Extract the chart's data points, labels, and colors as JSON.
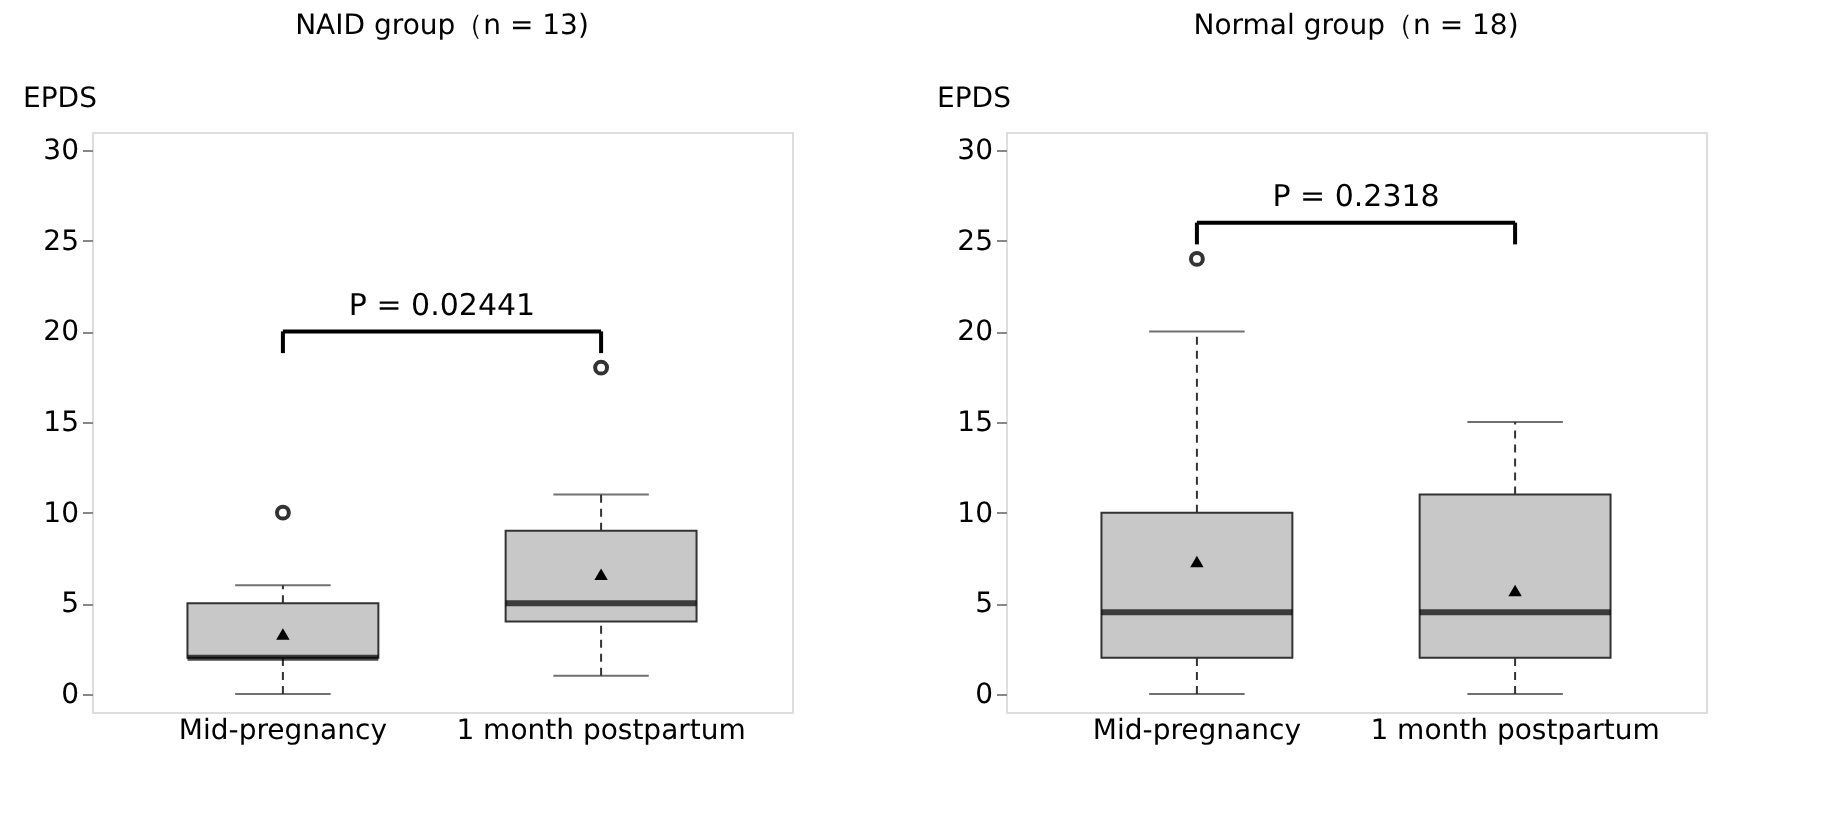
{
  "chart_data": [
    {
      "type": "box",
      "title": "NAID group（n = 13)",
      "ylabel": "EPDS",
      "categories": [
        "Mid-pregnancy",
        "1 month postpartum"
      ],
      "ylim": [
        -1,
        31
      ],
      "yticks": [
        0,
        5,
        10,
        15,
        20,
        25,
        30
      ],
      "grid": false,
      "annotations": [
        "P = 0.02441"
      ],
      "series": [
        {
          "color": "#c8c8c8",
          "boxes": [
            {
              "low": 0,
              "q1": 2,
              "median": 2,
              "q3": 5,
              "high": 6,
              "mean": 3.3,
              "outliers": [
                10
              ]
            },
            {
              "low": 1,
              "q1": 4,
              "median": 5,
              "q3": 9,
              "high": 11,
              "mean": 6.6,
              "outliers": [
                18
              ]
            }
          ]
        }
      ]
    },
    {
      "type": "box",
      "title": "Normal group（n = 18)",
      "ylabel": "EPDS",
      "categories": [
        "Mid-pregnancy",
        "1 month postpartum"
      ],
      "ylim": [
        -1,
        31
      ],
      "yticks": [
        0,
        5,
        10,
        15,
        20,
        25,
        30
      ],
      "grid": false,
      "annotations": [
        "P = 0.2318"
      ],
      "series": [
        {
          "color": "#c8c8c8",
          "boxes": [
            {
              "low": 0,
              "q1": 2,
              "median": 4.5,
              "q3": 10,
              "high": 20,
              "mean": 7.3,
              "outliers": [
                24
              ]
            },
            {
              "low": 0,
              "q1": 2,
              "median": 4.5,
              "q3": 11,
              "high": 15,
              "mean": 5.7
            }
          ]
        }
      ]
    }
  ]
}
